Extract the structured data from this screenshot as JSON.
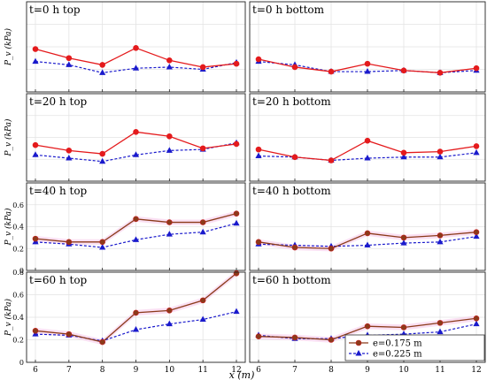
{
  "figure": {
    "xlabel": "x (m)",
    "ylabel_panels": "P_v (kPa)",
    "legend": {
      "placement": "bottom-right",
      "entries": [
        {
          "label": "e=0.175 m",
          "series": "e175"
        },
        {
          "label": "e=0.225 m",
          "series": "e225"
        }
      ]
    },
    "colors": {
      "red_series": "#e41a1c",
      "brown_series": "#8b3a1a",
      "blue_series": "#1a1acc",
      "band": "#f6c6ea"
    }
  },
  "chart_data": [
    {
      "type": "line",
      "title": "t=0 h top",
      "x": [
        6,
        7,
        8,
        9,
        10,
        11,
        12
      ],
      "ylim": [
        0,
        0.8
      ],
      "yticks": [],
      "show_xticks": false,
      "grid": true,
      "color175": "red",
      "series": [
        {
          "name": "e=0.175 m",
          "key": "e175",
          "values": [
            0.38,
            0.3,
            0.24,
            0.39,
            0.28,
            0.22,
            0.25
          ]
        },
        {
          "name": "e=0.225 m",
          "key": "e225",
          "values": [
            0.27,
            0.24,
            0.17,
            0.21,
            0.22,
            0.2,
            0.26
          ]
        }
      ]
    },
    {
      "type": "line",
      "title": "t=0 h bottom",
      "x": [
        6,
        7,
        8,
        9,
        10,
        11,
        12
      ],
      "ylim": [
        0,
        0.8
      ],
      "yticks": [],
      "show_xticks": false,
      "grid": true,
      "color175": "red",
      "series": [
        {
          "name": "e=0.175 m",
          "key": "e175",
          "values": [
            0.29,
            0.22,
            0.18,
            0.25,
            0.19,
            0.17,
            0.21
          ]
        },
        {
          "name": "e=0.225 m",
          "key": "e225",
          "values": [
            0.27,
            0.24,
            0.18,
            0.18,
            0.19,
            0.17,
            0.19
          ]
        }
      ]
    },
    {
      "type": "line",
      "title": "t=20 h top",
      "x": [
        6,
        7,
        8,
        9,
        10,
        11,
        12
      ],
      "ylim": [
        0,
        0.8
      ],
      "yticks": [],
      "show_xticks": false,
      "grid": true,
      "color175": "red",
      "series": [
        {
          "name": "e=0.175 m",
          "key": "e175",
          "values": [
            0.33,
            0.28,
            0.25,
            0.45,
            0.41,
            0.3,
            0.34
          ]
        },
        {
          "name": "e=0.225 m",
          "key": "e225",
          "values": [
            0.24,
            0.21,
            0.18,
            0.24,
            0.28,
            0.29,
            0.35
          ]
        }
      ]
    },
    {
      "type": "line",
      "title": "t=20 h bottom",
      "x": [
        6,
        7,
        8,
        9,
        10,
        11,
        12
      ],
      "ylim": [
        0,
        0.8
      ],
      "yticks": [],
      "show_xticks": false,
      "grid": true,
      "color175": "red",
      "series": [
        {
          "name": "e=0.175 m",
          "key": "e175",
          "values": [
            0.29,
            0.22,
            0.19,
            0.37,
            0.26,
            0.27,
            0.32
          ]
        },
        {
          "name": "e=0.225 m",
          "key": "e225",
          "values": [
            0.23,
            0.22,
            0.19,
            0.21,
            0.22,
            0.22,
            0.26
          ]
        }
      ]
    },
    {
      "type": "line",
      "title": "t=40 h top",
      "x": [
        6,
        7,
        8,
        9,
        10,
        11,
        12
      ],
      "ylim": [
        0,
        0.8
      ],
      "yticks": [
        "0",
        "0.2",
        "0.4",
        "0.6"
      ],
      "show_xticks": false,
      "grid": true,
      "color175": "brown",
      "series": [
        {
          "name": "e=0.175 m",
          "key": "e175",
          "values": [
            0.29,
            0.26,
            0.26,
            0.47,
            0.44,
            0.44,
            0.52
          ]
        },
        {
          "name": "e=0.225 m",
          "key": "e225",
          "values": [
            0.26,
            0.24,
            0.21,
            0.28,
            0.33,
            0.35,
            0.43
          ]
        }
      ]
    },
    {
      "type": "line",
      "title": "t=40 h bottom",
      "x": [
        6,
        7,
        8,
        9,
        10,
        11,
        12
      ],
      "ylim": [
        0,
        0.8
      ],
      "yticks": [],
      "show_xticks": false,
      "grid": true,
      "color175": "brown",
      "series": [
        {
          "name": "e=0.175 m",
          "key": "e175",
          "values": [
            0.26,
            0.21,
            0.2,
            0.34,
            0.3,
            0.32,
            0.35
          ]
        },
        {
          "name": "e=0.225 m",
          "key": "e225",
          "values": [
            0.24,
            0.23,
            0.22,
            0.23,
            0.25,
            0.26,
            0.31
          ]
        }
      ]
    },
    {
      "type": "line",
      "title": "t=60 h top",
      "x": [
        6,
        7,
        8,
        9,
        10,
        11,
        12
      ],
      "ylim": [
        0,
        0.8
      ],
      "yticks": [
        "0",
        "0.2",
        "0.4",
        "0.6",
        "0.8"
      ],
      "show_xticks": true,
      "grid": true,
      "color175": "brown",
      "series": [
        {
          "name": "e=0.175 m",
          "key": "e175",
          "values": [
            0.28,
            0.25,
            0.18,
            0.44,
            0.46,
            0.55,
            0.79
          ]
        },
        {
          "name": "e=0.225 m",
          "key": "e225",
          "values": [
            0.25,
            0.24,
            0.19,
            0.29,
            0.34,
            0.38,
            0.45
          ]
        }
      ]
    },
    {
      "type": "line",
      "title": "t=60 h bottom",
      "x": [
        6,
        7,
        8,
        9,
        10,
        11,
        12
      ],
      "ylim": [
        0,
        0.8
      ],
      "yticks": [],
      "show_xticks": true,
      "grid": true,
      "color175": "brown",
      "series": [
        {
          "name": "e=0.175 m",
          "key": "e175",
          "values": [
            0.23,
            0.22,
            0.2,
            0.32,
            0.31,
            0.35,
            0.39
          ]
        },
        {
          "name": "e=0.225 m",
          "key": "e225",
          "values": [
            0.24,
            0.21,
            0.21,
            0.24,
            0.25,
            0.27,
            0.34
          ]
        }
      ]
    }
  ]
}
